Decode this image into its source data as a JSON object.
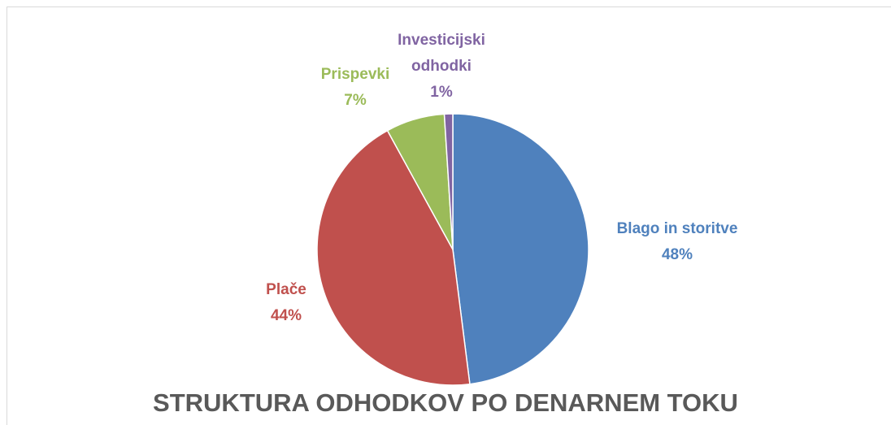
{
  "chart_data": {
    "type": "pie",
    "title": "STRUKTURA ODHODKOV PO DENARNEM TOKU",
    "categories": [
      "Blago in storitve",
      "Plače",
      "Prispevki",
      "Investicijski odhodki"
    ],
    "values": [
      48,
      44,
      7,
      1
    ],
    "value_labels": [
      "48%",
      "44%",
      "7%",
      "1%"
    ],
    "colors": [
      "#4f81bd",
      "#c0504d",
      "#9bbb59",
      "#8064a2"
    ]
  }
}
